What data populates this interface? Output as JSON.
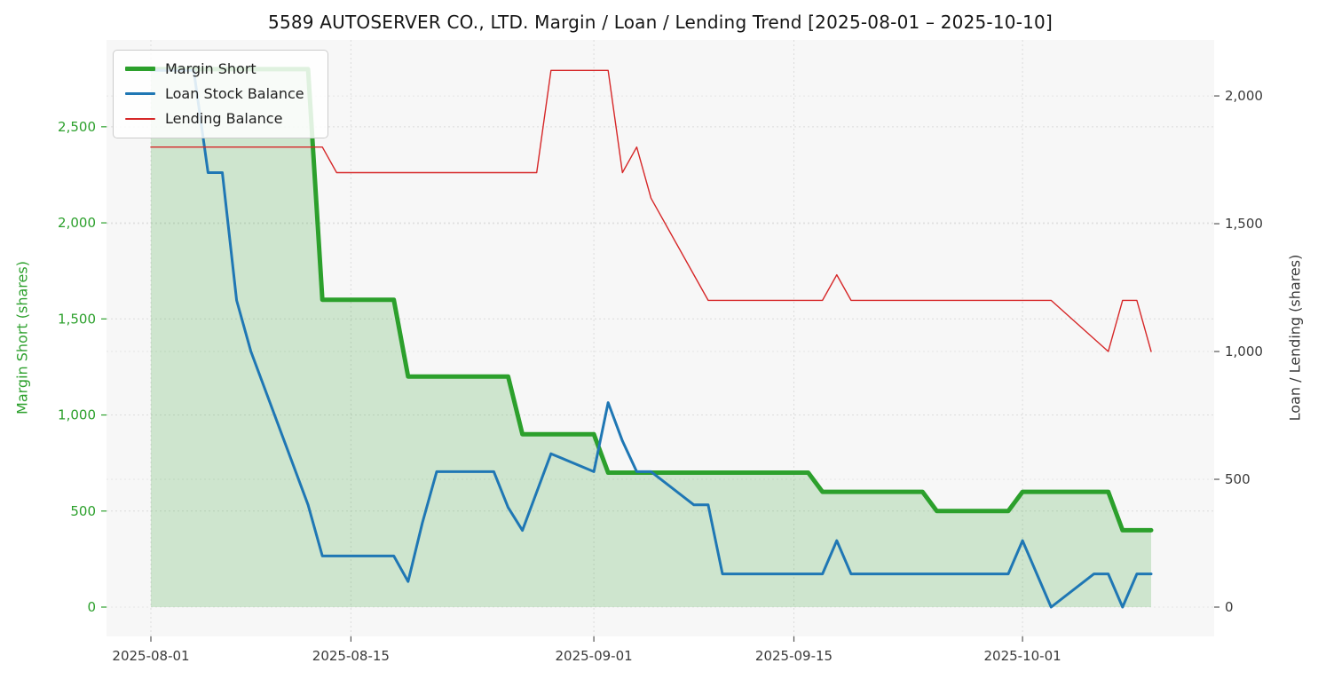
{
  "title": "5589 AUTOSERVER CO., LTD. Margin / Loan / Lending Trend [2025-08-01 – 2025-10-10]",
  "chart_data": {
    "type": "line",
    "x": [
      "2025-08-01",
      "2025-08-04",
      "2025-08-05",
      "2025-08-06",
      "2025-08-07",
      "2025-08-08",
      "2025-08-12",
      "2025-08-13",
      "2025-08-14",
      "2025-08-15",
      "2025-08-18",
      "2025-08-19",
      "2025-08-20",
      "2025-08-21",
      "2025-08-22",
      "2025-08-25",
      "2025-08-26",
      "2025-08-27",
      "2025-08-28",
      "2025-08-29",
      "2025-09-01",
      "2025-09-02",
      "2025-09-03",
      "2025-09-04",
      "2025-09-05",
      "2025-09-08",
      "2025-09-09",
      "2025-09-10",
      "2025-09-11",
      "2025-09-12",
      "2025-09-16",
      "2025-09-17",
      "2025-09-18",
      "2025-09-19",
      "2025-09-22",
      "2025-09-24",
      "2025-09-25",
      "2025-09-26",
      "2025-09-29",
      "2025-09-30",
      "2025-10-01",
      "2025-10-02",
      "2025-10-03",
      "2025-10-06",
      "2025-10-07",
      "2025-10-08",
      "2025-10-09",
      "2025-10-10"
    ],
    "x_ticks": [
      "2025-08-01",
      "2025-08-15",
      "2025-09-01",
      "2025-09-15",
      "2025-10-01"
    ],
    "left_axis": {
      "label": "Margin Short (shares)",
      "color": "#2ca02c",
      "ticks": [
        0,
        500,
        1000,
        1500,
        2000,
        2500
      ],
      "range": [
        0,
        2952
      ]
    },
    "right_axis": {
      "label": "Loan / Lending (shares)",
      "color": "#3a3a3a",
      "ticks": [
        0,
        500,
        1000,
        1500,
        2000
      ],
      "range": [
        0,
        2219
      ]
    },
    "grid": true,
    "legend_position": "upper-left",
    "series": [
      {
        "name": "Margin Short",
        "axis": "left",
        "color": "#2ca02c",
        "width": 5,
        "fill": "rgba(44,160,44,0.2)",
        "values": [
          2800,
          2800,
          2800,
          2800,
          2800,
          2800,
          2800,
          1600,
          1600,
          1600,
          1600,
          1200,
          1200,
          1200,
          1200,
          1200,
          1200,
          900,
          900,
          900,
          900,
          700,
          700,
          700,
          700,
          700,
          700,
          700,
          700,
          700,
          700,
          600,
          600,
          600,
          600,
          600,
          500,
          500,
          500,
          500,
          600,
          600,
          600,
          600,
          600,
          400,
          400,
          400
        ]
      },
      {
        "name": "Loan Stock Balance",
        "axis": "right",
        "color": "#1f77b4",
        "width": 3,
        "values": [
          2100,
          2100,
          1700,
          1700,
          1200,
          1000,
          400,
          200,
          200,
          200,
          200,
          100,
          330,
          530,
          530,
          530,
          390,
          300,
          450,
          600,
          530,
          800,
          650,
          530,
          530,
          400,
          400,
          130,
          130,
          130,
          130,
          130,
          260,
          130,
          130,
          130,
          130,
          130,
          130,
          130,
          260,
          130,
          0,
          130,
          130,
          0,
          130,
          130
        ]
      },
      {
        "name": "Lending Balance",
        "axis": "right",
        "color": "#d62728",
        "width": 1.4,
        "values": [
          1800,
          1800,
          1800,
          1800,
          1800,
          1800,
          1800,
          1800,
          1700,
          1700,
          1700,
          1700,
          1700,
          1700,
          1700,
          1700,
          1700,
          1700,
          1700,
          2100,
          2100,
          2100,
          1700,
          1800,
          1600,
          1300,
          1200,
          1200,
          1200,
          1200,
          1200,
          1200,
          1300,
          1200,
          1200,
          1200,
          1200,
          1200,
          1200,
          1200,
          1200,
          1200,
          1200,
          1050,
          1000,
          1200,
          1200,
          1000
        ]
      }
    ]
  }
}
